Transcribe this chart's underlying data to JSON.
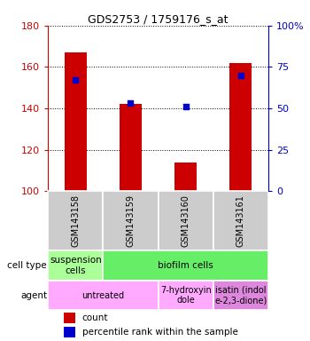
{
  "title": "GDS2753 / 1759176_s_at",
  "samples": [
    "GSM143158",
    "GSM143159",
    "GSM143160",
    "GSM143161"
  ],
  "bar_values": [
    167,
    142,
    114,
    162
  ],
  "percentile_values": [
    67,
    53,
    51,
    70
  ],
  "ylim_left": [
    100,
    180
  ],
  "ylim_right": [
    0,
    100
  ],
  "left_ticks": [
    100,
    120,
    140,
    160,
    180
  ],
  "right_ticks": [
    0,
    25,
    50,
    75,
    100
  ],
  "right_tick_labels": [
    "0",
    "25",
    "50",
    "75",
    "100%"
  ],
  "bar_color": "#cc0000",
  "dot_color": "#0000cc",
  "bar_width": 0.4,
  "cell_type_row": [
    {
      "label": "suspension\ncells",
      "color": "#aaff99",
      "span": 1
    },
    {
      "label": "biofilm cells",
      "color": "#66ee66",
      "span": 3
    }
  ],
  "agent_row": [
    {
      "label": "untreated",
      "color": "#ffaaff",
      "span": 2
    },
    {
      "label": "7-hydroxyin\ndole",
      "color": "#ffaaff",
      "span": 1
    },
    {
      "label": "isatin (indol\ne-2,3-dione)",
      "color": "#dd88dd",
      "span": 1
    }
  ],
  "sample_bg_color": "#cccccc",
  "left_axis_color": "#cc0000",
  "right_axis_color": "#0000cc",
  "legend_count_color": "#cc0000",
  "legend_dot_color": "#0000cc",
  "fig_width": 3.5,
  "fig_height": 3.84,
  "dpi": 100
}
